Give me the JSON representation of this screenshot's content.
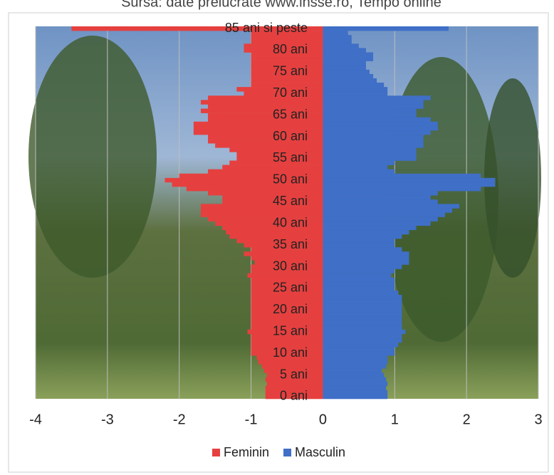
{
  "chart_data": {
    "type": "bar-pyramid",
    "title": "Sursa: date prelucrate www.insse.ro, Tempo online",
    "categories": [
      "0 ani",
      null,
      null,
      null,
      null,
      "5 ani",
      null,
      null,
      null,
      null,
      "10 ani",
      null,
      null,
      null,
      null,
      "15 ani",
      null,
      null,
      null,
      null,
      "20 ani",
      null,
      null,
      null,
      null,
      "25 ani",
      null,
      null,
      null,
      null,
      "30 ani",
      null,
      null,
      null,
      null,
      "35 ani",
      null,
      null,
      null,
      null,
      "40 ani",
      null,
      null,
      null,
      null,
      "45 ani",
      null,
      null,
      null,
      null,
      "50 ani",
      null,
      null,
      null,
      null,
      "55 ani",
      null,
      null,
      null,
      null,
      "60 ani",
      null,
      null,
      null,
      null,
      "65 ani",
      null,
      null,
      null,
      null,
      "70 ani",
      null,
      null,
      null,
      null,
      "75 ani",
      null,
      null,
      null,
      null,
      "80 ani",
      null,
      null,
      null,
      null,
      "85 ani si peste"
    ],
    "series": [
      {
        "name": "Feminin",
        "color": "#e5403f",
        "values": [
          -0.8,
          -0.8,
          -0.8,
          -0.78,
          -0.8,
          -0.78,
          -0.82,
          -0.85,
          -0.9,
          -0.92,
          -1.0,
          -1.0,
          -1.0,
          -1.0,
          -1.0,
          -1.05,
          -1.0,
          -1.0,
          -1.0,
          -1.0,
          -1.0,
          -1.0,
          -1.0,
          -1.0,
          -1.0,
          -1.0,
          -1.0,
          -1.0,
          -1.05,
          -1.0,
          -1.0,
          -0.95,
          -1.0,
          -1.1,
          -1.0,
          -1.1,
          -1.2,
          -1.3,
          -1.35,
          -1.4,
          -1.5,
          -1.6,
          -1.7,
          -1.7,
          -1.7,
          -1.4,
          -1.4,
          -1.6,
          -1.9,
          -2.1,
          -2.2,
          -2.0,
          -1.6,
          -1.4,
          -1.3,
          -1.2,
          -1.2,
          -1.3,
          -1.5,
          -1.6,
          -1.6,
          -1.8,
          -1.8,
          -1.8,
          -1.6,
          -1.6,
          -1.7,
          -1.6,
          -1.7,
          -1.6,
          -1.1,
          -1.2,
          -1.0,
          -1.0,
          -1.0,
          -1.0,
          -1.0,
          -1.0,
          -1.0,
          -1.0,
          -1.1,
          -1.1,
          -1.0,
          -1.0,
          -1.0,
          -3.5
        ]
      },
      {
        "name": "Masculin",
        "color": "#3f6fc6",
        "values": [
          0.9,
          0.9,
          0.88,
          0.9,
          0.88,
          0.85,
          0.82,
          0.88,
          0.9,
          0.9,
          1.0,
          1.0,
          1.05,
          1.1,
          1.1,
          1.15,
          1.1,
          1.1,
          1.1,
          1.1,
          1.1,
          1.1,
          1.1,
          1.1,
          1.05,
          1.0,
          1.0,
          1.0,
          0.95,
          1.0,
          1.1,
          1.2,
          1.2,
          1.2,
          1.1,
          1.0,
          1.0,
          1.1,
          1.2,
          1.3,
          1.5,
          1.6,
          1.7,
          1.8,
          1.9,
          1.6,
          1.5,
          1.6,
          2.2,
          2.4,
          2.4,
          2.2,
          1.0,
          0.9,
          1.0,
          1.3,
          1.3,
          1.3,
          1.4,
          1.4,
          1.4,
          1.5,
          1.6,
          1.6,
          1.5,
          1.3,
          1.3,
          1.4,
          1.4,
          1.5,
          0.9,
          0.9,
          0.85,
          0.75,
          0.7,
          0.65,
          0.6,
          0.6,
          0.7,
          0.7,
          0.6,
          0.5,
          0.4,
          0.4,
          0.35,
          1.75
        ]
      }
    ],
    "xlim": [
      -4,
      3
    ],
    "xticks": [
      -4,
      -3,
      -2,
      -1,
      0,
      1,
      2,
      3
    ],
    "grid": true,
    "legend": "bottom"
  }
}
